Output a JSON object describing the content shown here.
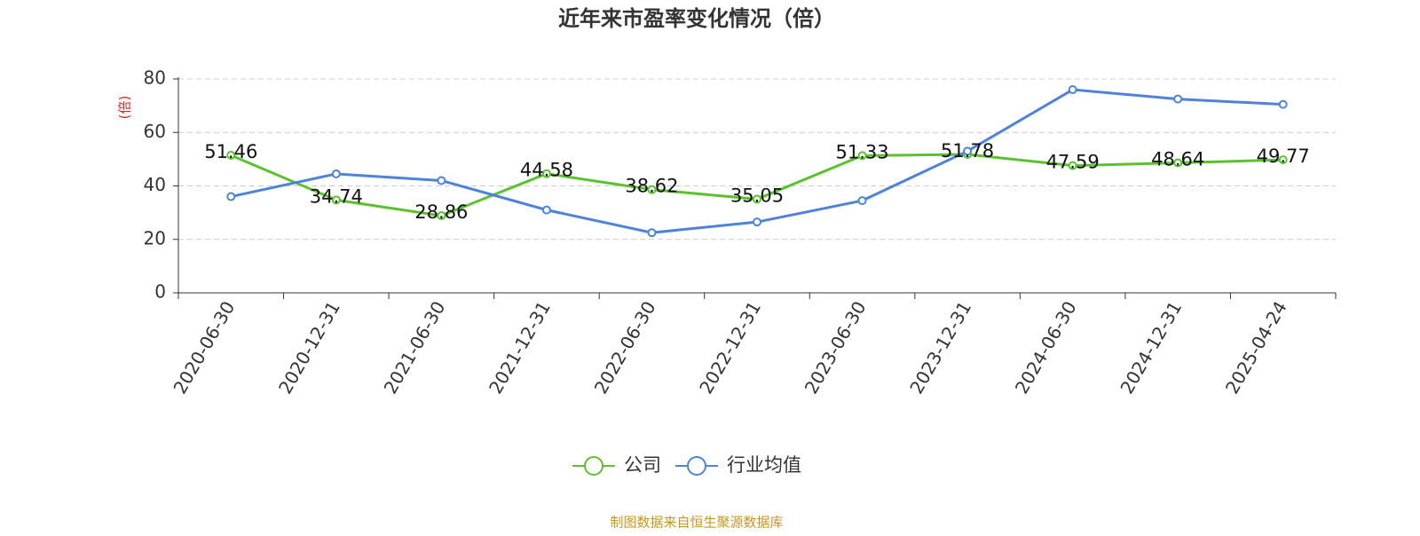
{
  "chart_data": {
    "type": "line",
    "title": "近年来市盈率变化情况（倍）",
    "y_label": "(倍)",
    "source": "制图数据来自恒生聚源数据库",
    "categories": [
      "2020-06-30",
      "2020-12-31",
      "2021-06-30",
      "2021-12-31",
      "2022-06-30",
      "2022-12-31",
      "2023-06-30",
      "2023-12-31",
      "2024-06-30",
      "2024-12-31",
      "2025-04-24"
    ],
    "series": [
      {
        "name": "公司",
        "color": "#5bc22e",
        "values": [
          51.46,
          34.74,
          28.86,
          44.58,
          38.62,
          35.05,
          51.33,
          51.78,
          47.59,
          48.64,
          49.77
        ],
        "show_labels": true
      },
      {
        "name": "行业均值",
        "color": "#4e82dd",
        "values": [
          36,
          44.5,
          42,
          31,
          22.5,
          26.5,
          34.5,
          53,
          76,
          72.5,
          70.5
        ],
        "show_labels": false
      }
    ],
    "ylim": [
      0,
      80
    ],
    "yticks": [
      0,
      20,
      40,
      60,
      80
    ],
    "grid": true,
    "legend": "bottom"
  }
}
